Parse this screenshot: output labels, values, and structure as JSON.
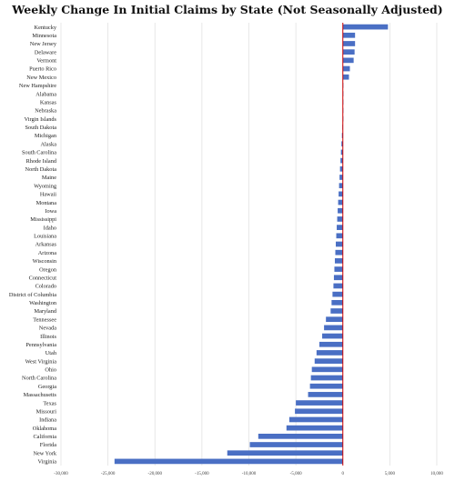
{
  "chart_data": {
    "type": "bar",
    "orientation": "horizontal",
    "title": "Weekly Change In Initial Claims by State (Not Seasonally Adjusted)",
    "xlabel": "",
    "ylabel": "",
    "xlim": [
      -30000,
      10000
    ],
    "xticks": [
      -30000,
      -25000,
      -20000,
      -15000,
      -10000,
      -5000,
      0,
      5000,
      10000
    ],
    "xtick_labels": [
      "-30,000",
      "-25,000",
      "-20,000",
      "-15,000",
      "-10,000",
      "-5,000",
      "0",
      "5,000",
      "10,000"
    ],
    "grid": "vertical",
    "zero_line_color": "#cc0000",
    "bar_color": "#4a6fc4",
    "categories": [
      "Kentucky",
      "Minnesota",
      "New Jersey",
      "Delaware",
      "Vermont",
      "Puerto Rico",
      "New Mexico",
      "New Hampshire",
      "Alabama",
      "Kansas",
      "Nebraska",
      "Virgin Islands",
      "South Dakota",
      "Michigan",
      "Alaska",
      "South Carolina",
      "Rhode Island",
      "North Dakota",
      "Maine",
      "Wyoming",
      "Hawaii",
      "Montana",
      "Iowa",
      "Mississippi",
      "Idaho",
      "Louisiana",
      "Arkansas",
      "Arizona",
      "Wisconsin",
      "Oregon",
      "Connecticut",
      "Colorado",
      "District of Columbia",
      "Washington",
      "Maryland",
      "Tennessee",
      "Nevada",
      "Illinois",
      "Pennsylvania",
      "Utah",
      "West Virginia",
      "Ohio",
      "North Carolina",
      "Georgia",
      "Massachusetts",
      "Texas",
      "Missouri",
      "Indiana",
      "Oklahoma",
      "California",
      "Florida",
      "New York",
      "Virginia"
    ],
    "values": [
      4800,
      1300,
      1300,
      1250,
      1150,
      750,
      650,
      50,
      0,
      0,
      0,
      0,
      -50,
      -100,
      -150,
      -200,
      -250,
      -300,
      -350,
      -400,
      -450,
      -500,
      -550,
      -600,
      -650,
      -700,
      -750,
      -800,
      -850,
      -900,
      -950,
      -1000,
      -1100,
      -1200,
      -1300,
      -1800,
      -2000,
      -2200,
      -2500,
      -2800,
      -3000,
      -3300,
      -3400,
      -3500,
      -3700,
      -5000,
      -5100,
      -5700,
      -6000,
      -9000,
      -9900,
      -12300,
      -24300
    ]
  }
}
